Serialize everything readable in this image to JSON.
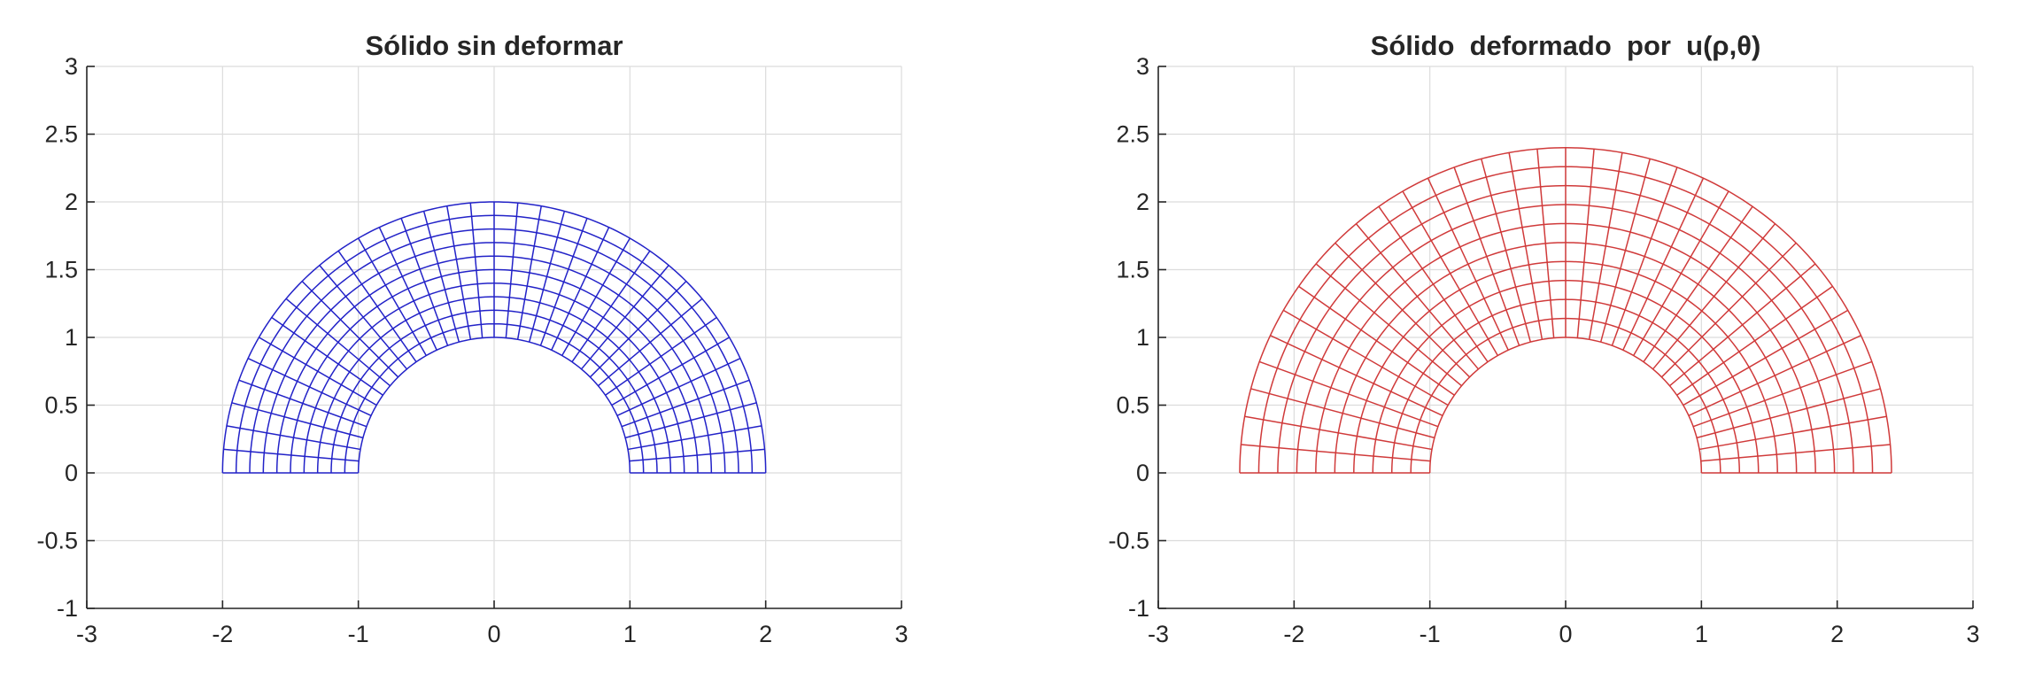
{
  "chart_data": [
    {
      "type": "mesh",
      "title": "Sólido sin deformar",
      "xlabel": "",
      "ylabel": "",
      "xlim": [
        -3,
        3
      ],
      "ylim": [
        -1,
        3
      ],
      "xticks": [
        "-3",
        "-2",
        "-1",
        "0",
        "1",
        "2",
        "3"
      ],
      "yticks": [
        "-1",
        "-0.5",
        "0",
        "0.5",
        "1",
        "1.5",
        "2",
        "2.5",
        "3"
      ],
      "grid": true,
      "color": "#2222c8",
      "inner_radius": 1,
      "outer_radius": 2,
      "theta_range_deg": [
        0,
        180
      ],
      "radial_divisions": 10,
      "angular_divisions": 36
    },
    {
      "type": "mesh",
      "title": "Sólido  deformado  por  u(ρ,θ)",
      "xlabel": "",
      "ylabel": "",
      "xlim": [
        -3,
        3
      ],
      "ylim": [
        -1,
        3
      ],
      "xticks": [
        "-3",
        "-2",
        "-1",
        "0",
        "1",
        "2",
        "3"
      ],
      "yticks": [
        "-1",
        "-0.5",
        "0",
        "0.5",
        "1",
        "1.5",
        "2",
        "2.5",
        "3"
      ],
      "grid": true,
      "color": "#d03a3a",
      "inner_radius": 1,
      "outer_radius": 2.4,
      "theta_range_deg": [
        0,
        180
      ],
      "radial_divisions": 10,
      "angular_divisions": 36
    }
  ]
}
